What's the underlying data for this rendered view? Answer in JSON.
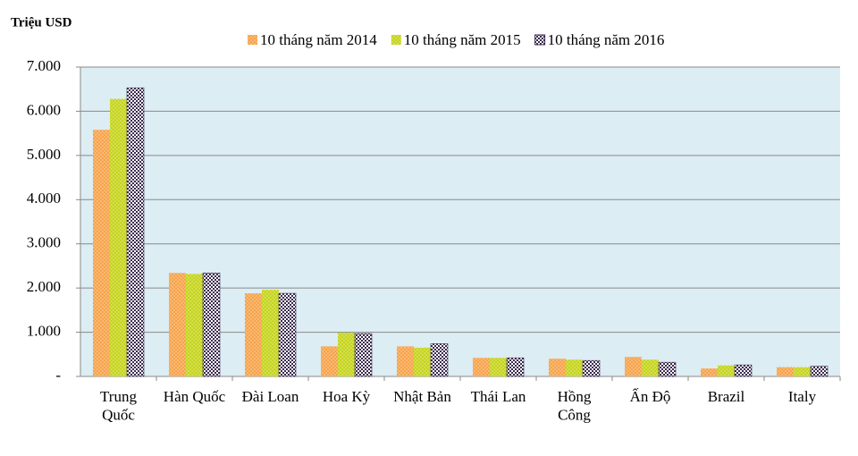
{
  "chart_data": {
    "type": "bar",
    "y_axis_title": "Triệu USD",
    "categories": [
      "Trung\nQuốc",
      "Hàn Quốc",
      "Đài Loan",
      "Hoa Kỳ",
      "Nhật Bản",
      "Thái Lan",
      "Hồng\nCông",
      "Ấn Độ",
      "Brazil",
      "Italy"
    ],
    "series": [
      {
        "name": "10 tháng năm 2014",
        "color": "#f7a34a",
        "pattern": "dots",
        "values": [
          5580,
          2340,
          1880,
          680,
          680,
          420,
          400,
          440,
          180,
          210
        ]
      },
      {
        "name": "10 tháng năm 2015",
        "color": "#c5d41c",
        "pattern": "dots",
        "values": [
          6280,
          2320,
          1960,
          990,
          650,
          420,
          380,
          380,
          250,
          210
        ]
      },
      {
        "name": "10 tháng năm 2016",
        "color": "#3b2a4f",
        "pattern": "checker",
        "values": [
          6530,
          2340,
          1880,
          970,
          740,
          420,
          360,
          320,
          260,
          230
        ]
      }
    ],
    "ylim": [
      0,
      7000
    ],
    "yticks": [
      {
        "value": 0,
        "label": "-"
      },
      {
        "value": 1000,
        "label": "1.000"
      },
      {
        "value": 2000,
        "label": "2.000"
      },
      {
        "value": 3000,
        "label": "3.000"
      },
      {
        "value": 4000,
        "label": "4.000"
      },
      {
        "value": 5000,
        "label": "5.000"
      },
      {
        "value": 6000,
        "label": "6.000"
      },
      {
        "value": 7000,
        "label": "7.000"
      }
    ],
    "grid": true,
    "legend": "top"
  }
}
